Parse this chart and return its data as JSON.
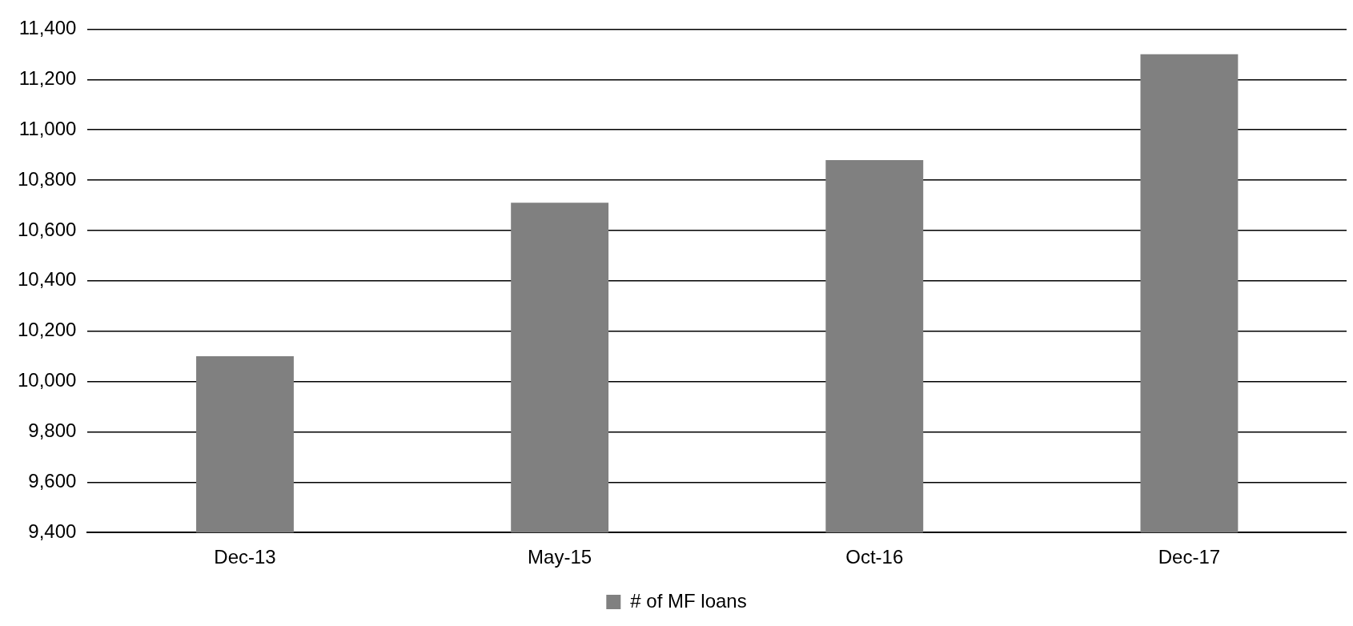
{
  "chart_data": {
    "type": "bar",
    "categories": [
      "Dec-13",
      "May-15",
      "Oct-16",
      "Dec-17"
    ],
    "series": [
      {
        "name": "# of MF loans",
        "color": "#808080",
        "values": [
          10100,
          10710,
          10880,
          11300
        ]
      }
    ],
    "ylim": [
      9400,
      11400
    ],
    "yticks": [
      {
        "value": 9400,
        "label": "9,400"
      },
      {
        "value": 9600,
        "label": "9,600"
      },
      {
        "value": 9800,
        "label": "9,800"
      },
      {
        "value": 10000,
        "label": "10,000"
      },
      {
        "value": 10200,
        "label": "10,200"
      },
      {
        "value": 10400,
        "label": "10,400"
      },
      {
        "value": 10600,
        "label": "10,600"
      },
      {
        "value": 10800,
        "label": "10,800"
      },
      {
        "value": 11000,
        "label": "11,000"
      },
      {
        "value": 11200,
        "label": "11,200"
      },
      {
        "value": 11400,
        "label": "11,400"
      }
    ],
    "grid": "y",
    "legend": "bottom"
  }
}
